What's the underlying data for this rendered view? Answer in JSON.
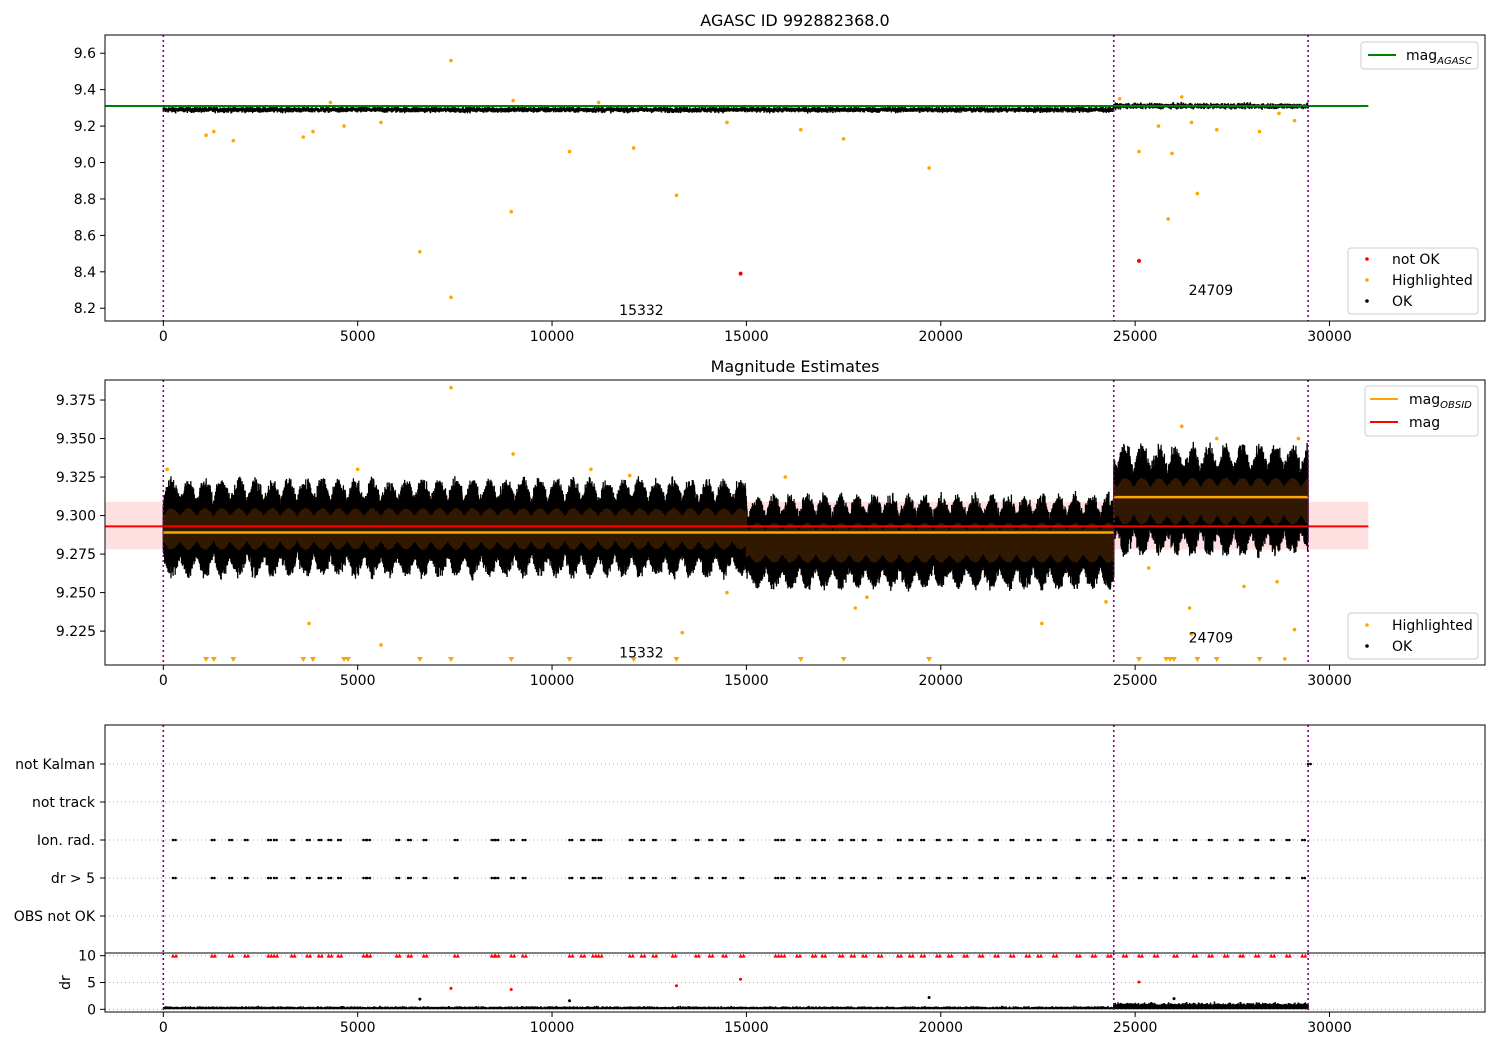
{
  "figure": {
    "title": "AGASC ID 992882368.0"
  },
  "chart_data": [
    {
      "type": "scatter",
      "panel": "top",
      "title": "AGASC ID 992882368.0",
      "xlim": [
        -1500,
        34000
      ],
      "ylim": [
        8.13,
        9.7
      ],
      "xticks": [
        "0",
        "5000",
        "10000",
        "15000",
        "20000",
        "25000",
        "30000"
      ],
      "xtick_values": [
        0,
        5000,
        10000,
        15000,
        20000,
        25000,
        30000
      ],
      "yticks": [
        "8.2",
        "8.4",
        "8.6",
        "8.8",
        "9.0",
        "9.2",
        "9.4",
        "9.6"
      ],
      "ytick_values": [
        8.2,
        8.4,
        8.6,
        8.8,
        9.0,
        9.2,
        9.4,
        9.6
      ],
      "segments": [
        {
          "obsid_label": "15332",
          "x_start": 0,
          "x_end": 24450,
          "ok_center": 9.29,
          "ok_spread": 0.03
        },
        {
          "obsid_label": "24709",
          "x_start": 24450,
          "x_end": 29450,
          "ok_center": 9.31,
          "ok_spread": 0.03
        }
      ],
      "obsid_label_positions": [
        {
          "label": "15332",
          "x": 12300,
          "y": 8.19
        },
        {
          "label": "24709",
          "x": 26950,
          "y": 8.3
        }
      ],
      "vlines": [
        0,
        24450,
        29450
      ],
      "mag_agasc": 9.31,
      "mag_agasc_xrange": [
        -1500,
        31000
      ],
      "highlighted": [
        [
          7400,
          9.56
        ],
        [
          1100,
          9.15
        ],
        [
          1300,
          9.17
        ],
        [
          1800,
          9.12
        ],
        [
          3600,
          9.14
        ],
        [
          3850,
          9.17
        ],
        [
          4650,
          9.2
        ],
        [
          5600,
          9.22
        ],
        [
          6600,
          8.51
        ],
        [
          7400,
          8.26
        ],
        [
          8950,
          8.73
        ],
        [
          10450,
          9.06
        ],
        [
          12100,
          9.08
        ],
        [
          13200,
          8.82
        ],
        [
          14500,
          9.22
        ],
        [
          16400,
          9.18
        ],
        [
          17500,
          9.13
        ],
        [
          19700,
          8.97
        ],
        [
          25100,
          9.06
        ],
        [
          25600,
          9.2
        ],
        [
          25850,
          8.69
        ],
        [
          25950,
          9.05
        ],
        [
          26450,
          9.22
        ],
        [
          26600,
          8.83
        ],
        [
          27100,
          9.18
        ],
        [
          28200,
          9.17
        ],
        [
          28700,
          9.27
        ],
        [
          29100,
          9.23
        ],
        [
          4300,
          9.33
        ],
        [
          9000,
          9.34
        ],
        [
          11200,
          9.33
        ],
        [
          24600,
          9.35
        ],
        [
          26200,
          9.36
        ]
      ],
      "not_ok": [
        [
          14850,
          8.39
        ],
        [
          25100,
          8.46
        ]
      ],
      "legend_top": [
        {
          "label": "mag",
          "sub": "AGASC",
          "color": "#008000",
          "kind": "line"
        }
      ],
      "legend_bottom": [
        {
          "label": "not OK",
          "color": "#ff0000",
          "kind": "dot"
        },
        {
          "label": "Highlighted",
          "color": "#ffa500",
          "kind": "dot"
        },
        {
          "label": "OK",
          "color": "#000000",
          "kind": "dot"
        }
      ]
    },
    {
      "type": "scatter",
      "panel": "middle",
      "title": "Magnitude Estimates",
      "xlim": [
        -1500,
        34000
      ],
      "ylim": [
        9.203,
        9.388
      ],
      "xticks": [
        "0",
        "5000",
        "10000",
        "15000",
        "20000",
        "25000",
        "30000"
      ],
      "xtick_values": [
        0,
        5000,
        10000,
        15000,
        20000,
        25000,
        30000
      ],
      "yticks": [
        "9.225",
        "9.250",
        "9.275",
        "9.300",
        "9.325",
        "9.350",
        "9.375"
      ],
      "ytick_values": [
        9.225,
        9.25,
        9.275,
        9.3,
        9.325,
        9.35,
        9.375
      ],
      "obsid_label_positions": [
        {
          "label": "15332",
          "x": 12300,
          "y": 9.211
        },
        {
          "label": "24709",
          "x": 26950,
          "y": 9.221
        }
      ],
      "vlines": [
        0,
        24450,
        29450
      ],
      "mag": 9.293,
      "mag_band": [
        9.278,
        9.309
      ],
      "mag_xrange": [
        -1500,
        31000
      ],
      "mag_obsid": [
        {
          "x_start": 0,
          "x_end": 24450,
          "value": 9.289
        },
        {
          "x_start": 24450,
          "x_end": 29450,
          "value": 9.312
        }
      ],
      "ok_envelope": [
        {
          "x_start": 0,
          "x_end": 15000,
          "center": 9.292,
          "half_range": 0.025
        },
        {
          "x_start": 15000,
          "x_end": 24450,
          "center": 9.283,
          "half_range": 0.024
        },
        {
          "x_start": 24450,
          "x_end": 29450,
          "center": 9.31,
          "half_range": 0.028
        }
      ],
      "highlighted": [
        [
          7400,
          9.383
        ],
        [
          100,
          9.33
        ],
        [
          5600,
          9.216
        ],
        [
          3750,
          9.23
        ],
        [
          13350,
          9.224
        ],
        [
          14500,
          9.25
        ],
        [
          17800,
          9.24
        ],
        [
          18100,
          9.247
        ],
        [
          22600,
          9.23
        ],
        [
          24250,
          9.244
        ],
        [
          25350,
          9.266
        ],
        [
          26400,
          9.24
        ],
        [
          26450,
          9.223
        ],
        [
          27800,
          9.254
        ],
        [
          28650,
          9.257
        ],
        [
          28850,
          9.207
        ],
        [
          29100,
          9.226
        ],
        [
          5000,
          9.33
        ],
        [
          9000,
          9.34
        ],
        [
          11000,
          9.33
        ],
        [
          12000,
          9.326
        ],
        [
          16000,
          9.325
        ],
        [
          26200,
          9.358
        ],
        [
          27100,
          9.35
        ],
        [
          29200,
          9.35
        ]
      ],
      "clipped_low_x": [
        1100,
        1300,
        1800,
        3600,
        3850,
        4650,
        4750,
        6600,
        7400,
        8950,
        10450,
        12100,
        13200,
        16400,
        17500,
        19700,
        25100,
        25800,
        25900,
        26000,
        26600,
        27100,
        28200
      ],
      "legend_top": [
        {
          "label": "mag",
          "sub": "OBSID",
          "color": "#ffa500",
          "kind": "line"
        },
        {
          "label": "mag",
          "sub": "",
          "color": "#ff0000",
          "kind": "line"
        }
      ],
      "legend_bottom": [
        {
          "label": "Highlighted",
          "color": "#ffa500",
          "kind": "dot"
        },
        {
          "label": "OK",
          "color": "#000000",
          "kind": "dot"
        }
      ]
    },
    {
      "type": "scatter",
      "panel": "flags",
      "xlim": [
        -1500,
        34000
      ],
      "categories": [
        "not Kalman",
        "not track",
        "Ion. rad.",
        "dr > 5",
        "OBS not OK"
      ],
      "vlines": [
        0,
        24450,
        29450
      ],
      "flag_points": {
        "Ion. rad.": [
          250,
          1250,
          1700,
          2100,
          2700,
          2850,
          3300,
          3700,
          4000,
          4250,
          4500,
          5150,
          5250,
          6000,
          6300,
          6700,
          7500,
          8450,
          8550,
          8950,
          9250,
          10450,
          10750,
          11050,
          11200,
          12000,
          12300,
          12600,
          13100,
          13700,
          14050,
          14400,
          14850,
          15750,
          15900,
          16300,
          16700,
          16950,
          17400,
          17700,
          18000,
          18400,
          18900,
          19200,
          19500,
          19900,
          20200,
          20600,
          21000,
          21400,
          21800,
          22200,
          22500,
          22900,
          23500,
          23900,
          24300,
          24700,
          25100,
          25500,
          26000,
          26500,
          26900,
          27300,
          27700,
          28100,
          28500,
          28900,
          29300
        ],
        "dr > 5": [
          250,
          1250,
          1700,
          2100,
          2700,
          2850,
          3300,
          3700,
          4000,
          4250,
          4500,
          5150,
          5250,
          6000,
          6300,
          6700,
          7500,
          8450,
          8550,
          8950,
          9250,
          10450,
          10750,
          11050,
          11200,
          12000,
          12300,
          12600,
          13100,
          13700,
          14050,
          14400,
          14850,
          15750,
          15900,
          16300,
          16700,
          16950,
          17400,
          17700,
          18000,
          18400,
          18900,
          19200,
          19500,
          19900,
          20200,
          20600,
          21000,
          21400,
          21800,
          22200,
          22500,
          22900,
          23500,
          23900,
          24300,
          24700,
          25100,
          25500,
          26000,
          26500,
          26900,
          27300,
          27700,
          28100,
          28500,
          28900,
          29300
        ],
        "not Kalman": [
          29450
        ]
      }
    },
    {
      "type": "scatter",
      "panel": "dr",
      "ylabel": "dr",
      "xlim": [
        -1500,
        34000
      ],
      "ylim": [
        -0.5,
        10.5
      ],
      "xticks": [
        "0",
        "5000",
        "10000",
        "15000",
        "20000",
        "25000",
        "30000"
      ],
      "xtick_values": [
        0,
        5000,
        10000,
        15000,
        20000,
        25000,
        30000
      ],
      "yticks": [
        "0",
        "5",
        "10"
      ],
      "ytick_values": [
        0,
        5,
        10
      ],
      "vlines": [
        0,
        24450,
        29450
      ],
      "baseline": [
        {
          "x_start": 0,
          "x_end": 24450,
          "mean": 0.4
        },
        {
          "x_start": 24450,
          "x_end": 29450,
          "mean": 0.9
        }
      ],
      "outliers_red": [
        [
          7400,
          3.9
        ],
        [
          8950,
          3.7
        ],
        [
          13200,
          4.4
        ],
        [
          14850,
          5.6
        ],
        [
          25100,
          5.1
        ]
      ],
      "outliers_black": [
        [
          6600,
          1.9
        ],
        [
          10450,
          1.6
        ],
        [
          19700,
          2.2
        ],
        [
          26000,
          2.0
        ]
      ],
      "capped_red_x": [
        250,
        1250,
        1700,
        2100,
        2700,
        2850,
        3300,
        3700,
        4000,
        4250,
        4500,
        5150,
        5250,
        6000,
        6300,
        6700,
        7500,
        8450,
        8550,
        8950,
        9250,
        10450,
        10750,
        11050,
        11200,
        12000,
        12300,
        12600,
        13100,
        13700,
        14050,
        14400,
        14850,
        15750,
        15900,
        16300,
        16700,
        16950,
        17400,
        17700,
        18000,
        18400,
        18900,
        19200,
        19500,
        19900,
        20200,
        20600,
        21000,
        21400,
        21800,
        22200,
        22500,
        22900,
        23500,
        23900,
        24300,
        24700,
        25100,
        25500,
        26000,
        26500,
        26900,
        27300,
        27700,
        28100,
        28500,
        28900,
        29300
      ]
    }
  ]
}
